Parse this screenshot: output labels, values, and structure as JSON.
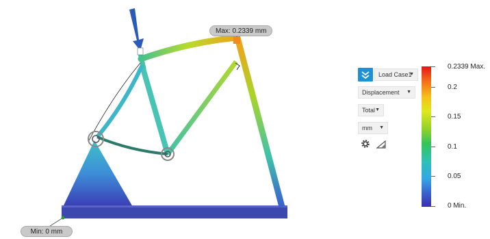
{
  "viewport": {
    "max_label": "Max: 0.2339 mm",
    "min_label": "Min: 0 mm"
  },
  "controls": {
    "load_case": "Load Case1",
    "result_type": "Displacement",
    "component": "Total",
    "units": "mm",
    "icons": [
      "check-icon",
      "gear-icon",
      "probe-icon"
    ]
  },
  "legend": {
    "labels": [
      "0.2339 Max.",
      "0.2",
      "0.15",
      "0.1",
      "0.05",
      "0 Min."
    ],
    "max": 0.2339,
    "min": 0,
    "colors": [
      "#e01818",
      "#f6c21a",
      "#8fd12a",
      "#2ec1b7",
      "#33a6e6",
      "#3a2fb0"
    ]
  }
}
